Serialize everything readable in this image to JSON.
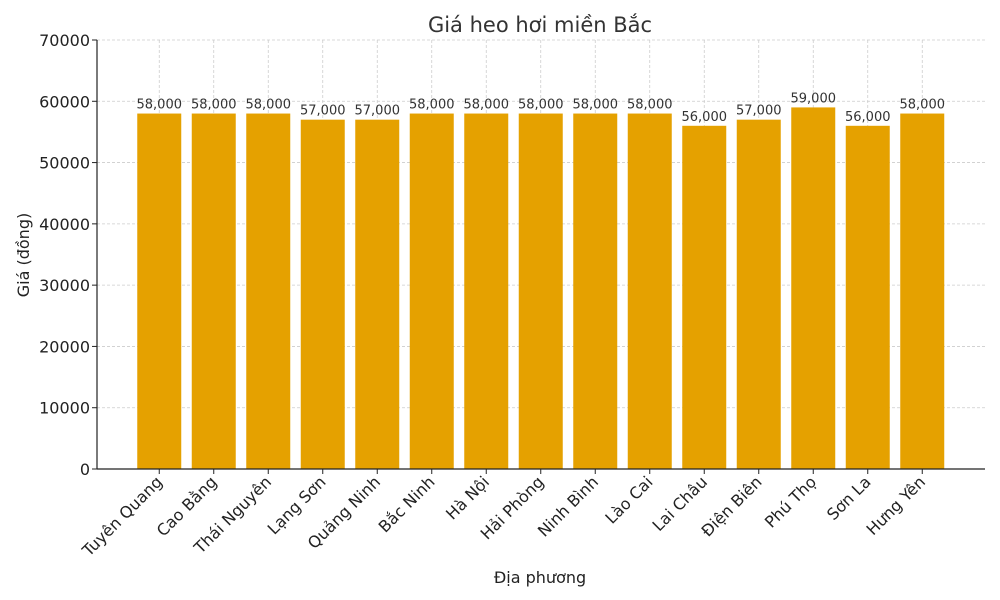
{
  "chart_data": {
    "type": "bar",
    "title": "Giá heo hơi miền Bắc",
    "xlabel": "Địa phương",
    "ylabel": "Giá (đồng)",
    "ylim": [
      0,
      70000
    ],
    "yticks": [
      0,
      10000,
      20000,
      30000,
      40000,
      50000,
      60000,
      70000
    ],
    "grid": true,
    "bar_color": "#E5A100",
    "categories": [
      "Tuyên Quang",
      "Cao Bằng",
      "Thái Nguyên",
      "Lạng Sơn",
      "Quảng Ninh",
      "Bắc Ninh",
      "Hà Nội",
      "Hải Phòng",
      "Ninh Bình",
      "Lào Cai",
      "Lai Châu",
      "Điện Biên",
      "Phú Thọ",
      "Sơn La",
      "Hưng Yên"
    ],
    "values": [
      58000,
      58000,
      58000,
      57000,
      57000,
      58000,
      58000,
      58000,
      58000,
      58000,
      56000,
      57000,
      59000,
      56000,
      58000
    ],
    "value_labels": [
      "58,000",
      "58,000",
      "58,000",
      "57,000",
      "57,000",
      "58,000",
      "58,000",
      "58,000",
      "58,000",
      "58,000",
      "56,000",
      "57,000",
      "59,000",
      "56,000",
      "58,000"
    ]
  }
}
